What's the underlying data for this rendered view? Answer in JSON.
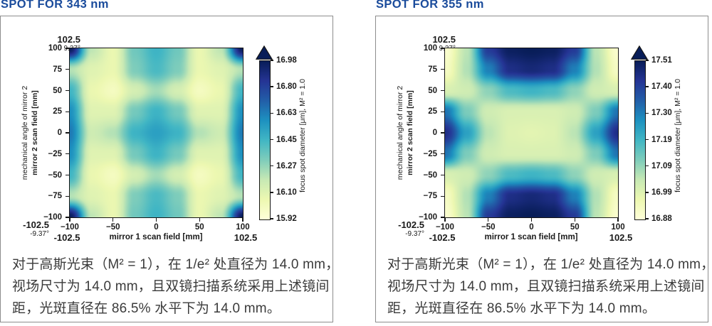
{
  "theme": {
    "title_color": "#1b4c9c",
    "caption_color": "#3b3b3b",
    "axis_color": "#1a1a1a",
    "panel_border_color": "#8d8d8d",
    "background": "#ffffff"
  },
  "chart_data": [
    {
      "type": "heatmap",
      "title": "SPOT FOR 343 nm",
      "xlabel": "mirror 1 scan field [mm]",
      "ylabel_lines": [
        "mechanical angle of mirror 2",
        "mirror 2 scan field [mm]"
      ],
      "colorbar_label": "focus spot diameter [μm], M² = 1.0",
      "xticks": [
        "−100",
        "−50",
        "0",
        "50",
        "100"
      ],
      "yticks": [
        "100",
        "75",
        "50",
        "25",
        "0",
        "−25",
        "−50",
        "−75",
        "−100"
      ],
      "colorbar_ticks": [
        "16.98",
        "16.80",
        "16.63",
        "16.45",
        "16.27",
        "16.10",
        "15.92"
      ],
      "vmin": 15.92,
      "vmax": 16.98,
      "x_range": [
        -100,
        100
      ],
      "y_range": [
        -100,
        100
      ],
      "secondary_labels": {
        "top_mm": "102.5",
        "top_deg": "9.37°",
        "bottom_mm": "-102.5",
        "bottom_deg": "-9.37°",
        "x_min": "-102.5",
        "x_max": "102.5"
      },
      "grid_x": [
        -100,
        -75,
        -50,
        -25,
        0,
        25,
        50,
        75,
        100
      ],
      "grid_y": [
        100,
        75,
        50,
        25,
        0,
        -25,
        -50,
        -75,
        -100
      ],
      "values": [
        [
          16.97,
          16.2,
          16.06,
          16.35,
          16.46,
          16.35,
          16.06,
          16.2,
          16.97
        ],
        [
          16.22,
          16.1,
          16.06,
          16.32,
          16.43,
          16.32,
          16.06,
          16.1,
          16.22
        ],
        [
          16.45,
          16.06,
          16.0,
          16.14,
          16.25,
          16.14,
          16.0,
          16.06,
          16.45
        ],
        [
          16.58,
          16.1,
          16.1,
          16.34,
          16.46,
          16.34,
          16.1,
          16.1,
          16.58
        ],
        [
          16.64,
          16.16,
          16.22,
          16.46,
          16.53,
          16.46,
          16.22,
          16.16,
          16.64
        ],
        [
          16.58,
          16.1,
          16.1,
          16.34,
          16.46,
          16.34,
          16.1,
          16.1,
          16.58
        ],
        [
          16.45,
          16.06,
          16.0,
          16.14,
          16.25,
          16.14,
          16.0,
          16.06,
          16.45
        ],
        [
          16.22,
          16.1,
          16.06,
          16.32,
          16.43,
          16.32,
          16.06,
          16.1,
          16.22
        ],
        [
          16.97,
          16.2,
          16.06,
          16.35,
          16.46,
          16.35,
          16.06,
          16.2,
          16.97
        ]
      ],
      "colormap_name": "YlGnBu",
      "colormap_stops": [
        "#ffffd9",
        "#edf8b1",
        "#c7e9b4",
        "#7fcdbb",
        "#41b6c4",
        "#1d91c0",
        "#225ea8",
        "#253494",
        "#081d58"
      ],
      "caption_lines": [
        "对于高斯光束（M² = 1），在 1/e² 处直径为 14.0 mm，",
        "视场尺寸为 14.0 mm，且双镜扫描系统采用上述镜间",
        "距，光斑直径在 86.5% 水平下为 14.0 mm。"
      ]
    },
    {
      "type": "heatmap",
      "title": "SPOT FOR 355 nm",
      "xlabel": "mirror 1 scan field [mm]",
      "ylabel_lines": [
        "mechanical angle of mirror 2",
        "mirror 2 scan field [mm]"
      ],
      "colorbar_label": "focus spot diameter [μm], M² = 1.0",
      "xticks": [
        "−100",
        "−50",
        "0",
        "50",
        "100"
      ],
      "yticks": [
        "100",
        "75",
        "50",
        "25",
        "0",
        "−25",
        "−50",
        "−75",
        "−100"
      ],
      "colorbar_ticks": [
        "17.51",
        "17.40",
        "17.30",
        "17.19",
        "17.09",
        "16.99",
        "16.88"
      ],
      "vmin": 16.88,
      "vmax": 17.51,
      "x_range": [
        -100,
        100
      ],
      "y_range": [
        -100,
        100
      ],
      "secondary_labels": {
        "top_mm": "102.5",
        "top_deg": "9.37°",
        "bottom_mm": "-102.5",
        "bottom_deg": "-9.37°",
        "x_min": "-102.5",
        "x_max": "102.5"
      },
      "grid_x": [
        -100,
        -75,
        -50,
        -25,
        0,
        25,
        50,
        75,
        100
      ],
      "grid_y": [
        100,
        75,
        50,
        25,
        0,
        -25,
        -50,
        -75,
        -100
      ],
      "values": [
        [
          16.9,
          17.05,
          17.42,
          17.5,
          17.51,
          17.5,
          17.42,
          17.05,
          16.9
        ],
        [
          16.92,
          17.06,
          17.3,
          17.45,
          17.47,
          17.45,
          17.3,
          17.06,
          16.92
        ],
        [
          17.0,
          17.02,
          17.1,
          17.18,
          17.2,
          17.18,
          17.1,
          17.02,
          17.0
        ],
        [
          17.32,
          17.12,
          17.02,
          17.0,
          17.0,
          17.0,
          17.02,
          17.12,
          17.32
        ],
        [
          17.45,
          17.24,
          17.05,
          16.99,
          16.98,
          16.99,
          17.05,
          17.24,
          17.45
        ],
        [
          17.32,
          17.12,
          17.02,
          17.0,
          17.0,
          17.0,
          17.02,
          17.12,
          17.32
        ],
        [
          17.0,
          17.02,
          17.1,
          17.18,
          17.2,
          17.18,
          17.1,
          17.02,
          17.0
        ],
        [
          16.92,
          17.06,
          17.3,
          17.45,
          17.47,
          17.45,
          17.3,
          17.06,
          16.92
        ],
        [
          16.9,
          17.05,
          17.42,
          17.5,
          17.51,
          17.5,
          17.42,
          17.05,
          16.9
        ]
      ],
      "colormap_name": "YlGnBu",
      "colormap_stops": [
        "#ffffd9",
        "#edf8b1",
        "#c7e9b4",
        "#7fcdbb",
        "#41b6c4",
        "#1d91c0",
        "#225ea8",
        "#253494",
        "#081d58"
      ],
      "caption_lines": [
        "对于高斯光束（M² = 1），在 1/e² 处直径为 14.0 mm，",
        "视场尺寸为 14.0 mm，且双镜扫描系统采用上述镜间",
        "距，光斑直径在 86.5% 水平下为 14.0 mm。"
      ]
    }
  ]
}
